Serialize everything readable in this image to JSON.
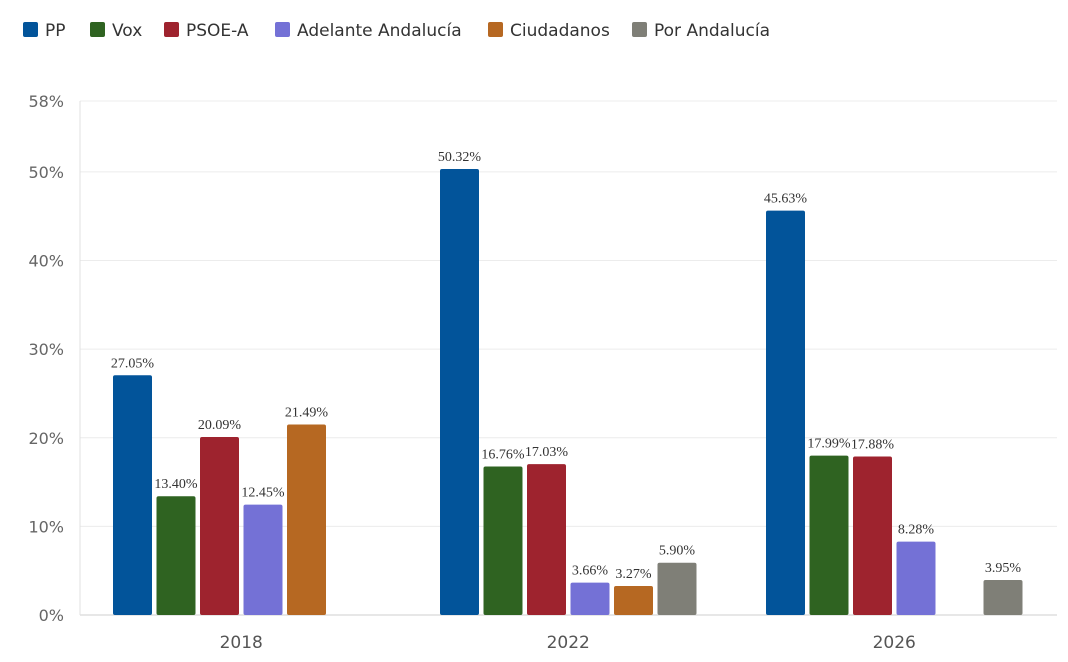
{
  "chart_data": {
    "type": "bar",
    "categories": [
      "2018",
      "2022",
      "2026"
    ],
    "series": [
      {
        "name": "PP",
        "color": "#02549a",
        "values": [
          27.05,
          50.32,
          45.63
        ]
      },
      {
        "name": "Vox",
        "color": "#2f6321",
        "values": [
          13.4,
          16.76,
          17.99
        ]
      },
      {
        "name": "PSOE-A",
        "color": "#9e232e",
        "values": [
          20.09,
          17.03,
          17.88
        ]
      },
      {
        "name": "Adelante Andalucía",
        "color": "#7471d6",
        "values": [
          12.45,
          3.66,
          8.28
        ]
      },
      {
        "name": "Ciudadanos",
        "color": "#b66822",
        "values": [
          21.49,
          3.27,
          null
        ]
      },
      {
        "name": "Por Andalucía",
        "color": "#7f7f77",
        "values": [
          null,
          5.9,
          3.95
        ]
      }
    ],
    "data_labels": [
      [
        "27.05%",
        "50.32%",
        "45.63%"
      ],
      [
        "13.40%",
        "16.76%",
        "17.99%"
      ],
      [
        "20.09%",
        "17.03%",
        "17.88%"
      ],
      [
        "12.45%",
        "3.66%",
        "8.28%"
      ],
      [
        "21.49%",
        "3.27%",
        null
      ],
      [
        null,
        "5.90%",
        "3.95%"
      ]
    ],
    "yticks": [
      0,
      10,
      20,
      30,
      40,
      50,
      58
    ],
    "ytick_labels": [
      "0%",
      "10%",
      "20%",
      "30%",
      "40%",
      "50%",
      "58%"
    ],
    "ylim": [
      0,
      58
    ],
    "grid": true,
    "legend_position": "top-left",
    "title": "",
    "xlabel": "",
    "ylabel": ""
  }
}
